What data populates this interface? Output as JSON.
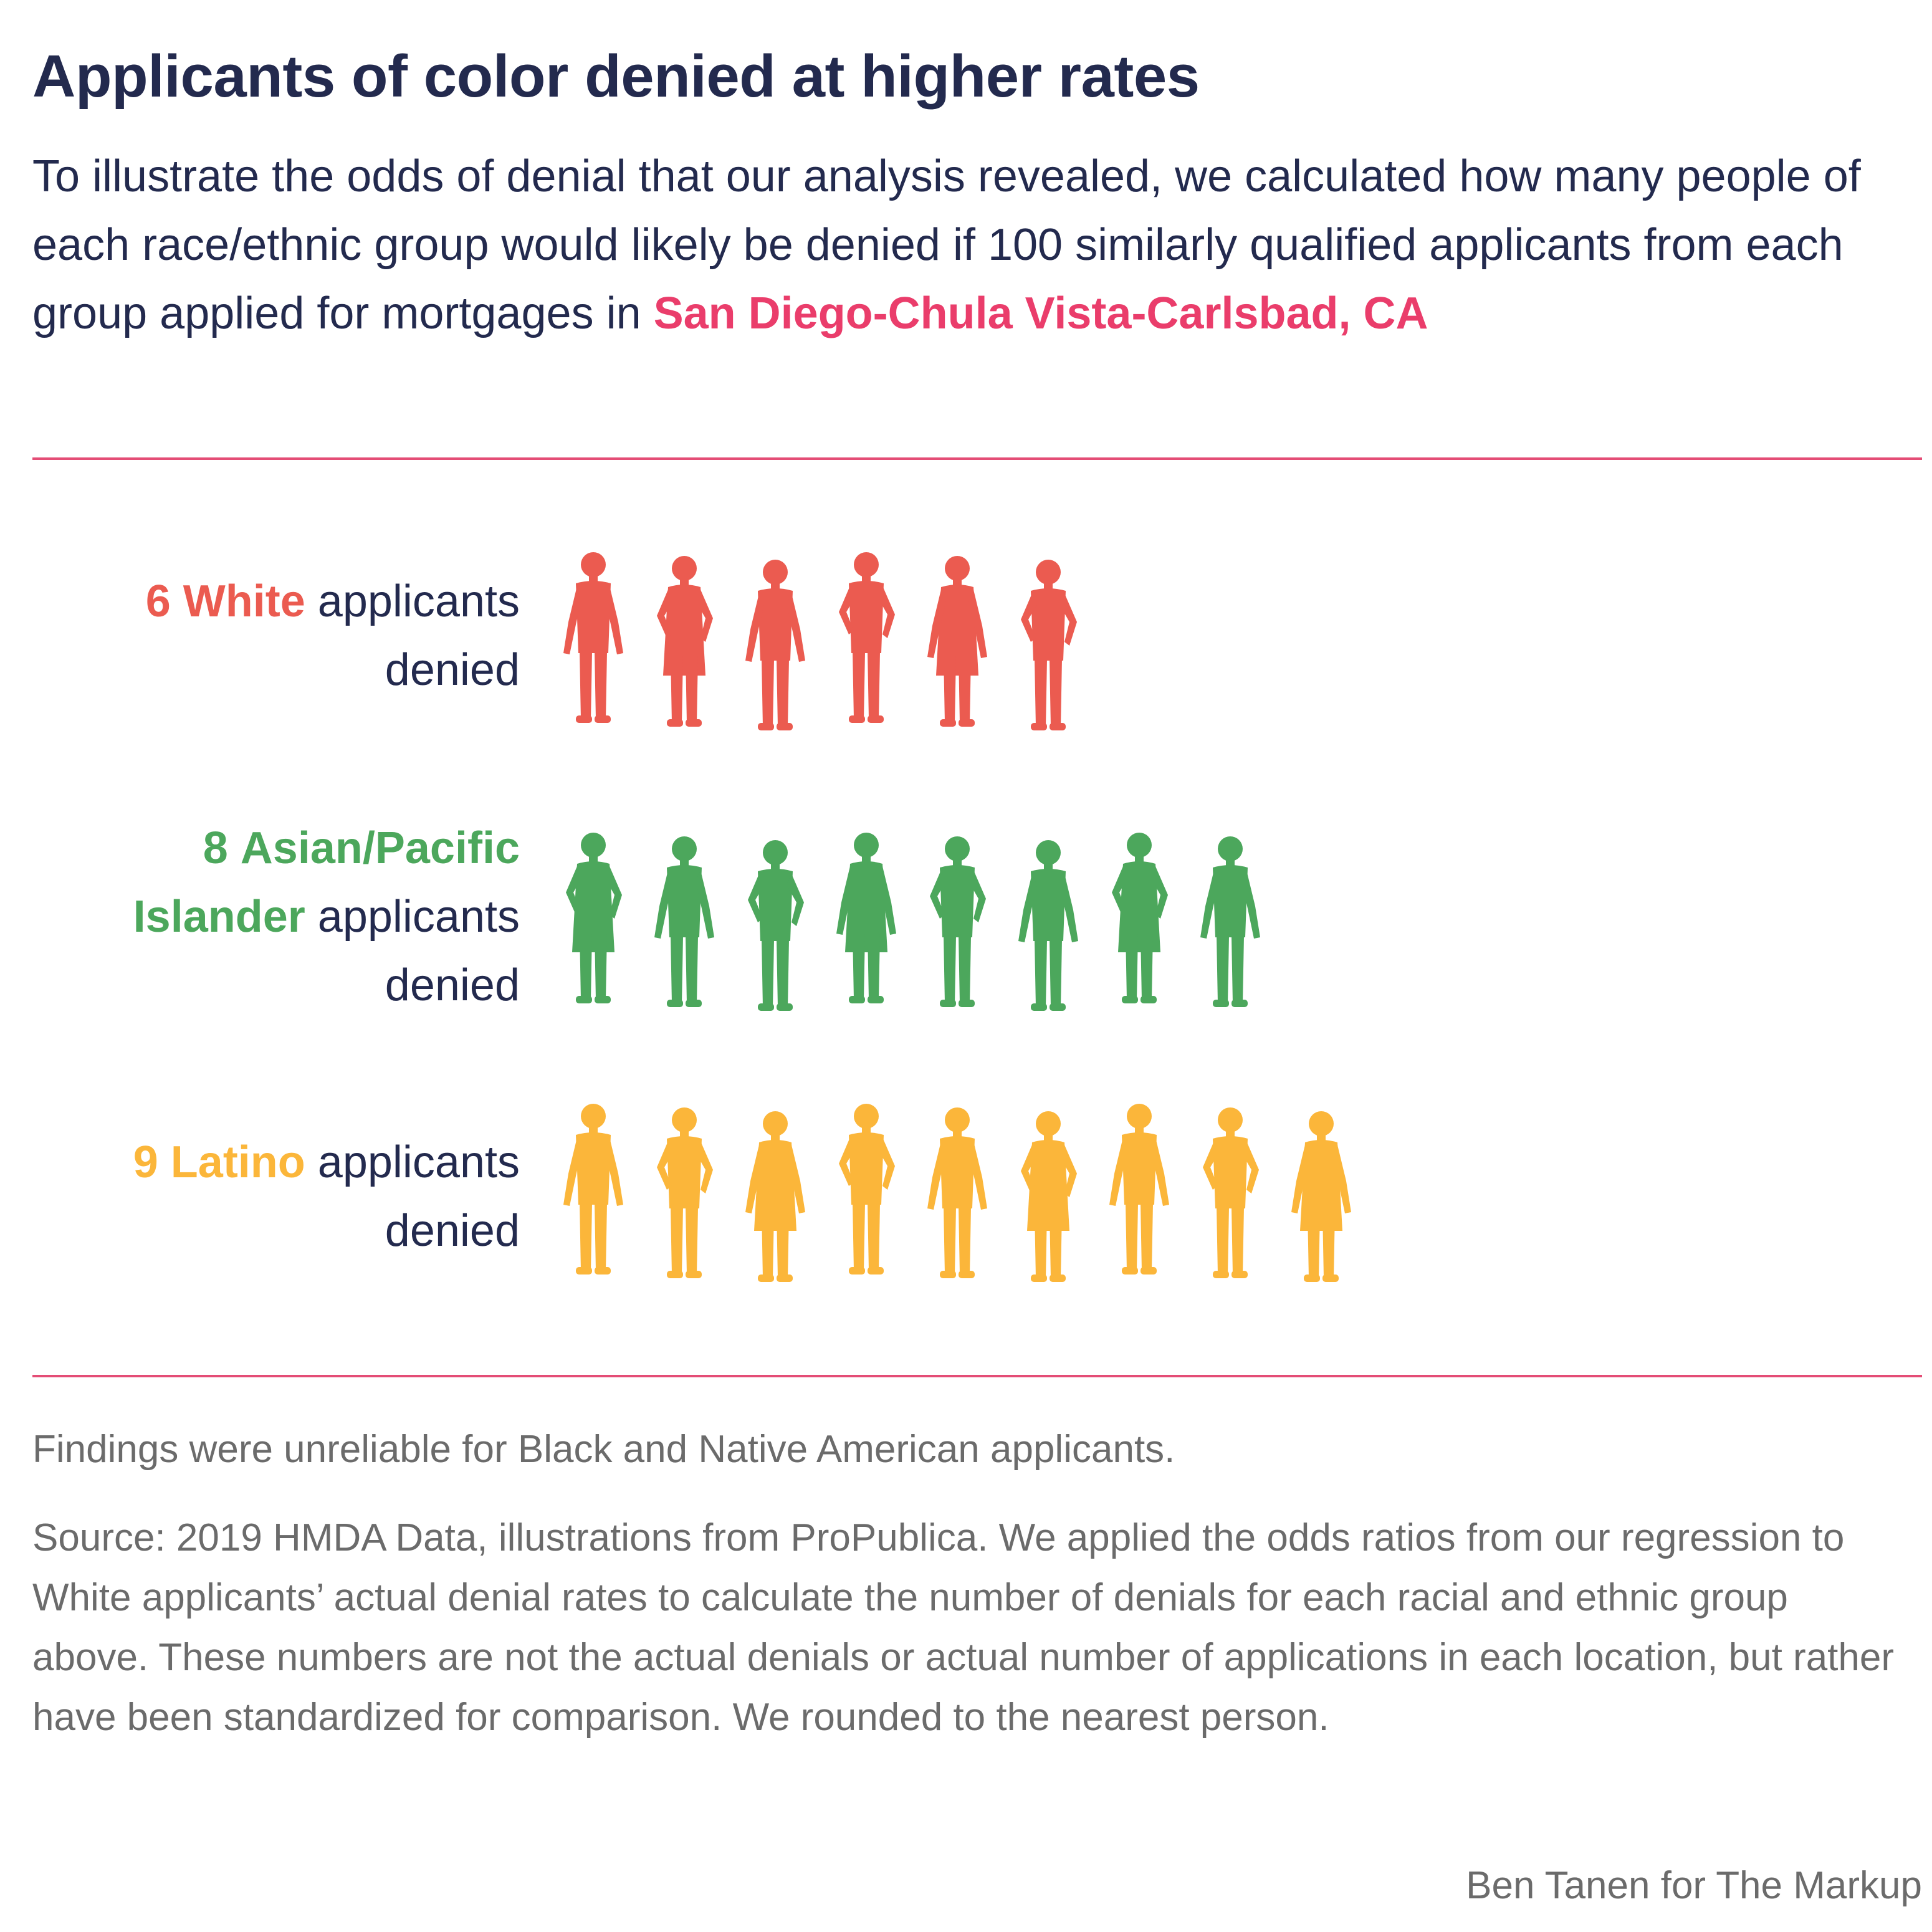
{
  "header": {
    "title": "Applicants of color denied at higher rates",
    "intro_text": "To illustrate the odds of denial that our analysis revealed, we calculated how many people of each race/ethnic group would likely be denied if 100 similarly qualified applicants from each group applied for mortgages in ",
    "location": "San Diego-Chula Vista-Carlsbad, CA"
  },
  "chart_data": {
    "type": "pictogram",
    "unit": "applicants denied per 100 similarly qualified applicants",
    "categories": [
      "White",
      "Asian/Pacific Islander",
      "Latino"
    ],
    "values": [
      6,
      8,
      9
    ],
    "rows": [
      {
        "count_text": "6",
        "group": "White",
        "suffix": "applicants denied",
        "value": 6,
        "color": "#eb5b50"
      },
      {
        "count_text": "8",
        "group": "Asian/Pacific Islander",
        "suffix": "applicants denied",
        "value": 8,
        "color": "#4ca75c"
      },
      {
        "count_text": "9",
        "group": "Latino",
        "suffix": "applicants denied",
        "value": 9,
        "color": "#fbb63a"
      }
    ]
  },
  "footer": {
    "note": "Findings were unreliable for Black and Native American applicants.",
    "source": "Source: 2019 HMDA Data, illustrations from ProPublica. We applied the odds ratios from our regression to White applicants’ actual denial rates to calculate the number of denials for each racial and ethnic group above. These numbers are not the actual denials or actual number of applications in each location, but rather have been standardized for comparison. We rounded to the nearest person.",
    "credit": "Ben Tanen for The Markup"
  },
  "colors": {
    "title": "#232a4e",
    "accent": "#ea3d6b",
    "rule": "#e44d76",
    "footnote": "#6b6b6b"
  }
}
